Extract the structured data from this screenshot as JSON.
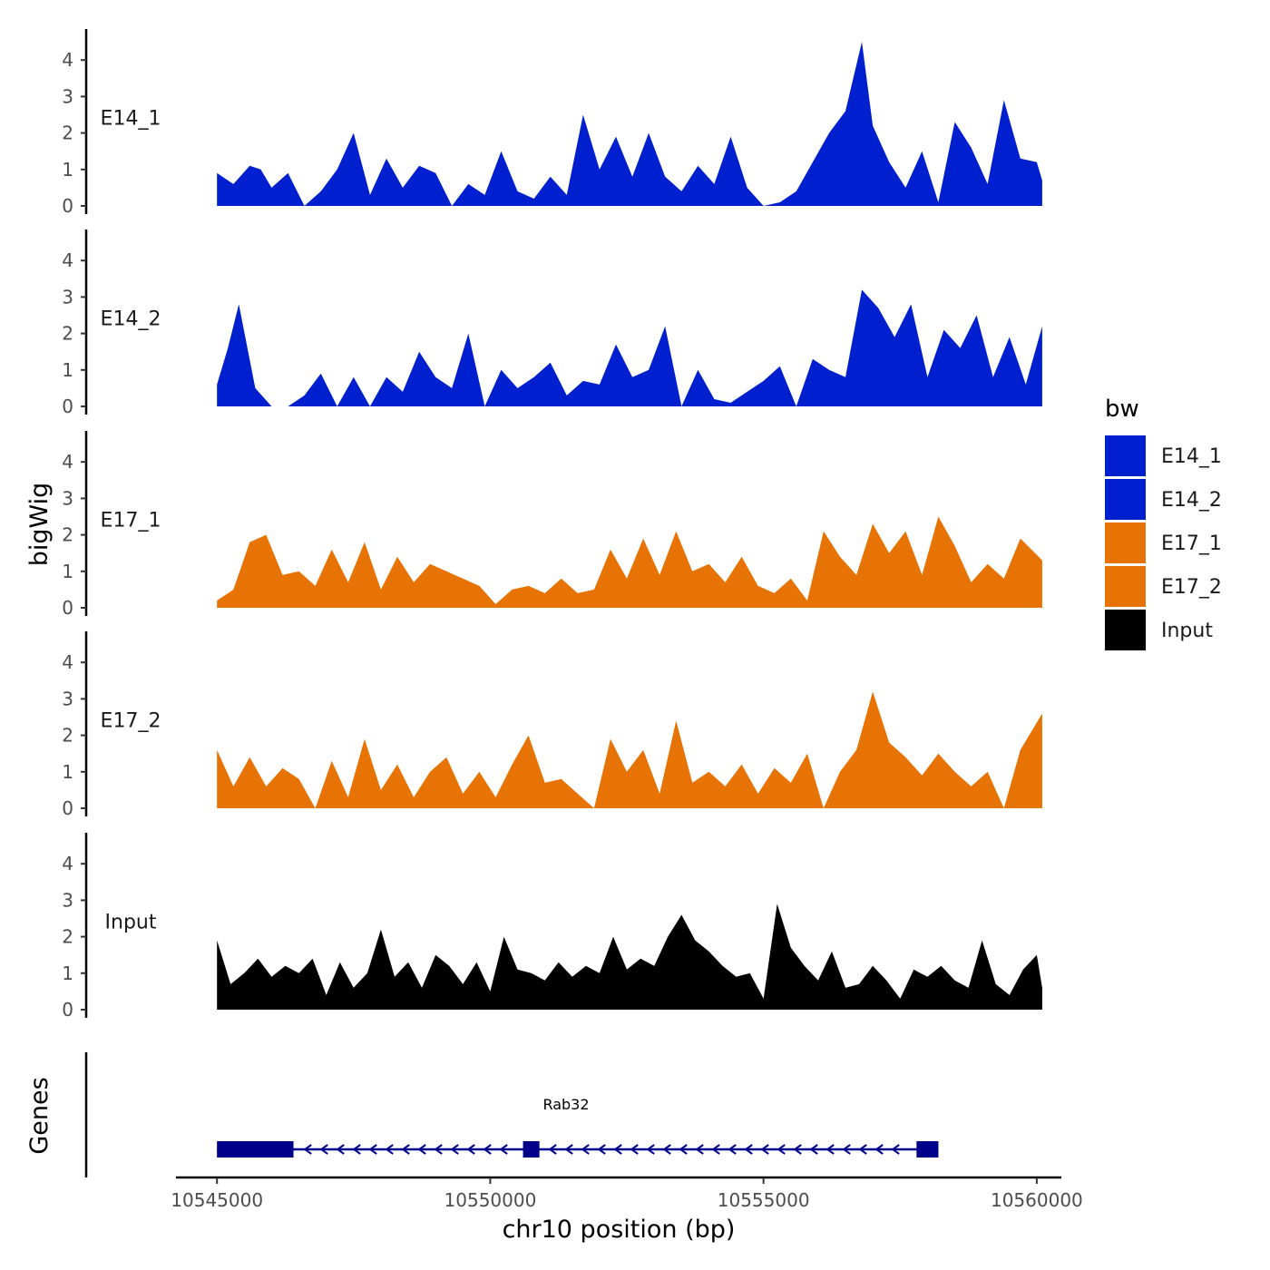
{
  "chart_data": {
    "type": "area",
    "title": "",
    "xlabel": "chr10 position (bp)",
    "ylabel": "bigWig",
    "genes_label": "Genes",
    "x_range": [
      10545000,
      10560100
    ],
    "xlim": [
      10544250,
      10560450
    ],
    "x_ticks": [
      10545000,
      10550000,
      10555000,
      10560000
    ],
    "x_tick_labels": [
      "10545000",
      "10550000",
      "10555000",
      "10560000"
    ],
    "ylim": [
      0,
      4.8
    ],
    "y_ticks": [
      0,
      1,
      2,
      3,
      4
    ],
    "y_tick_labels": [
      "0",
      "1",
      "2",
      "3",
      "4"
    ],
    "legend": {
      "title": "bw",
      "position": "right",
      "entries": [
        {
          "label": "E14_1",
          "color": "#0020cf"
        },
        {
          "label": "E14_2",
          "color": "#0020cf"
        },
        {
          "label": "E17_1",
          "color": "#e87305"
        },
        {
          "label": "E17_2",
          "color": "#e87305"
        },
        {
          "label": "Input",
          "color": "#000000"
        }
      ]
    },
    "series": [
      {
        "name": "E14_1",
        "color": "#0020cf",
        "x": [
          10545000,
          10545300,
          10545600,
          10545800,
          10546000,
          10546300,
          10546600,
          10546900,
          10547200,
          10547500,
          10547800,
          10548100,
          10548400,
          10548700,
          10549000,
          10549300,
          10549600,
          10549900,
          10550200,
          10550500,
          10550800,
          10551100,
          10551400,
          10551700,
          10552000,
          10552300,
          10552600,
          10552900,
          10553200,
          10553500,
          10553800,
          10554100,
          10554400,
          10554700,
          10555000,
          10555300,
          10555600,
          10555900,
          10556200,
          10556500,
          10556800,
          10557000,
          10557300,
          10557600,
          10557900,
          10558200,
          10558500,
          10558800,
          10559100,
          10559400,
          10559700,
          10560000,
          10560100
        ],
        "values": [
          0.9,
          0.6,
          1.1,
          1.0,
          0.5,
          0.9,
          0.0,
          0.4,
          1.0,
          2.0,
          0.3,
          1.3,
          0.5,
          1.1,
          0.9,
          0.0,
          0.6,
          0.3,
          1.5,
          0.4,
          0.2,
          0.8,
          0.3,
          2.5,
          1.0,
          1.9,
          0.8,
          2.0,
          0.8,
          0.4,
          1.1,
          0.6,
          1.9,
          0.5,
          0.0,
          0.1,
          0.4,
          1.2,
          2.0,
          2.6,
          4.5,
          2.2,
          1.2,
          0.5,
          1.5,
          0.1,
          2.3,
          1.6,
          0.6,
          2.9,
          1.3,
          1.2,
          0.7
        ]
      },
      {
        "name": "E14_2",
        "color": "#0020cf",
        "x": [
          10545000,
          10545200,
          10545400,
          10545700,
          10546000,
          10546300,
          10546600,
          10546900,
          10547200,
          10547500,
          10547800,
          10548100,
          10548400,
          10548700,
          10549000,
          10549300,
          10549600,
          10549900,
          10550200,
          10550500,
          10550800,
          10551100,
          10551400,
          10551700,
          10552000,
          10552300,
          10552600,
          10552900,
          10553200,
          10553500,
          10553800,
          10554100,
          10554400,
          10554700,
          10555000,
          10555300,
          10555600,
          10555900,
          10556200,
          10556500,
          10556800,
          10557100,
          10557400,
          10557700,
          10558000,
          10558300,
          10558600,
          10558900,
          10559200,
          10559500,
          10559800,
          10560100
        ],
        "values": [
          0.6,
          1.6,
          2.8,
          0.5,
          0.0,
          0.0,
          0.3,
          0.9,
          0.0,
          0.8,
          0.0,
          0.8,
          0.4,
          1.5,
          0.8,
          0.5,
          2.0,
          0.0,
          1.0,
          0.5,
          0.8,
          1.2,
          0.3,
          0.7,
          0.6,
          1.7,
          0.8,
          1.0,
          2.2,
          0.0,
          1.0,
          0.2,
          0.1,
          0.4,
          0.7,
          1.1,
          0.0,
          1.3,
          1.0,
          0.8,
          3.2,
          2.7,
          1.9,
          2.8,
          0.8,
          2.1,
          1.6,
          2.5,
          0.8,
          1.9,
          0.6,
          2.2
        ]
      },
      {
        "name": "E17_1",
        "color": "#e87305",
        "x": [
          10545000,
          10545300,
          10545600,
          10545900,
          10546200,
          10546500,
          10546800,
          10547100,
          10547400,
          10547700,
          10548000,
          10548300,
          10548600,
          10548900,
          10549200,
          10549500,
          10549800,
          10550100,
          10550400,
          10550700,
          10551000,
          10551300,
          10551600,
          10551900,
          10552200,
          10552500,
          10552800,
          10553100,
          10553400,
          10553700,
          10554000,
          10554300,
          10554600,
          10554900,
          10555200,
          10555500,
          10555800,
          10556100,
          10556400,
          10556700,
          10557000,
          10557300,
          10557600,
          10557900,
          10558200,
          10558500,
          10558800,
          10559100,
          10559400,
          10559700,
          10560100
        ],
        "values": [
          0.2,
          0.5,
          1.8,
          2.0,
          0.9,
          1.0,
          0.6,
          1.6,
          0.7,
          1.8,
          0.5,
          1.4,
          0.7,
          1.2,
          1.0,
          0.8,
          0.6,
          0.1,
          0.5,
          0.6,
          0.4,
          0.8,
          0.4,
          0.5,
          1.6,
          0.8,
          1.9,
          0.9,
          2.1,
          1.0,
          1.2,
          0.7,
          1.4,
          0.6,
          0.4,
          0.8,
          0.2,
          2.1,
          1.4,
          0.9,
          2.3,
          1.5,
          2.1,
          0.9,
          2.5,
          1.7,
          0.7,
          1.2,
          0.8,
          1.9,
          1.3
        ]
      },
      {
        "name": "E17_2",
        "color": "#e87305",
        "x": [
          10545000,
          10545300,
          10545600,
          10545900,
          10546200,
          10546500,
          10546800,
          10547100,
          10547400,
          10547700,
          10548000,
          10548300,
          10548600,
          10548900,
          10549200,
          10549500,
          10549800,
          10550100,
          10550400,
          10550700,
          10551000,
          10551300,
          10551600,
          10551900,
          10552200,
          10552500,
          10552800,
          10553100,
          10553400,
          10553700,
          10554000,
          10554300,
          10554600,
          10554900,
          10555200,
          10555500,
          10555800,
          10556100,
          10556400,
          10556700,
          10557000,
          10557300,
          10557600,
          10557900,
          10558200,
          10558500,
          10558800,
          10559100,
          10559400,
          10559700,
          10560100
        ],
        "values": [
          1.6,
          0.6,
          1.4,
          0.6,
          1.1,
          0.8,
          0.0,
          1.3,
          0.3,
          1.9,
          0.5,
          1.2,
          0.3,
          1.0,
          1.4,
          0.4,
          1.0,
          0.3,
          1.2,
          2.0,
          0.7,
          0.8,
          0.4,
          0.0,
          1.9,
          1.0,
          1.6,
          0.4,
          2.4,
          0.7,
          1.0,
          0.6,
          1.2,
          0.4,
          1.1,
          0.7,
          1.5,
          0.0,
          1.0,
          1.6,
          3.2,
          1.8,
          1.4,
          0.9,
          1.5,
          1.0,
          0.6,
          1.0,
          0.0,
          1.6,
          2.6
        ]
      },
      {
        "name": "Input",
        "color": "#000000",
        "x": [
          10545000,
          10545250,
          10545500,
          10545750,
          10546000,
          10546250,
          10546500,
          10546750,
          10547000,
          10547250,
          10547500,
          10547750,
          10548000,
          10548250,
          10548500,
          10548750,
          10549000,
          10549250,
          10549500,
          10549750,
          10550000,
          10550250,
          10550500,
          10550750,
          10551000,
          10551250,
          10551500,
          10551750,
          10552000,
          10552250,
          10552500,
          10552750,
          10553000,
          10553250,
          10553500,
          10553750,
          10554000,
          10554250,
          10554500,
          10554750,
          10555000,
          10555250,
          10555500,
          10555750,
          10556000,
          10556250,
          10556500,
          10556750,
          10557000,
          10557250,
          10557500,
          10557750,
          10558000,
          10558250,
          10558500,
          10558750,
          10559000,
          10559250,
          10559500,
          10559750,
          10560000,
          10560100
        ],
        "values": [
          1.9,
          0.7,
          1.0,
          1.4,
          0.9,
          1.2,
          1.0,
          1.4,
          0.4,
          1.3,
          0.6,
          1.0,
          2.2,
          0.9,
          1.3,
          0.6,
          1.5,
          1.2,
          0.7,
          1.3,
          0.5,
          2.0,
          1.1,
          1.0,
          0.8,
          1.3,
          0.9,
          1.2,
          1.0,
          2.0,
          1.1,
          1.4,
          1.2,
          2.0,
          2.6,
          1.9,
          1.6,
          1.2,
          0.9,
          1.0,
          0.3,
          2.9,
          1.7,
          1.2,
          0.8,
          1.6,
          0.6,
          0.7,
          1.2,
          0.8,
          0.3,
          1.1,
          0.9,
          1.2,
          0.8,
          0.6,
          1.9,
          0.7,
          0.4,
          1.1,
          1.5,
          0.6
        ]
      }
    ],
    "genes": [
      {
        "name": "Rab32",
        "strand": "-",
        "start": 10545000,
        "end": 10558200,
        "exons": [
          [
            10545000,
            10546400
          ],
          [
            10550600,
            10550900
          ],
          [
            10557800,
            10558200
          ]
        ]
      }
    ]
  }
}
